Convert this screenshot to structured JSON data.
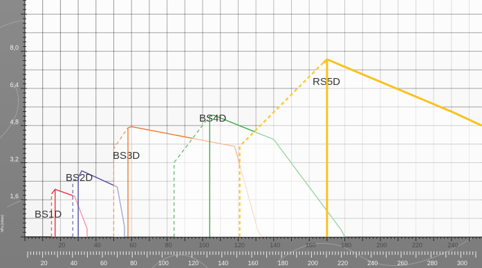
{
  "chart_data": {
    "type": "line",
    "title": "",
    "ylabel": "hPa (mbar)",
    "y_ticks": [
      "1,6",
      "3,2",
      "4,8",
      "6,4",
      "8,0"
    ],
    "x_ticks_upper": [
      "20",
      "40",
      "60",
      "80",
      "100",
      "120",
      "140",
      "160",
      "180",
      "200",
      "220",
      "240",
      "260"
    ],
    "x_ticks_lower": [
      "20",
      "40",
      "60",
      "80",
      "100",
      "120",
      "140",
      "160",
      "180",
      "200",
      "220",
      "240",
      "260",
      "280",
      "300"
    ],
    "series": [
      {
        "name": "BS1D",
        "color": "#e8303c",
        "dashed_x": [
          15,
          15
        ],
        "dashed_y": [
          0,
          1.85
        ],
        "solid_x": [
          15,
          17,
          28,
          35,
          35
        ],
        "solid_y": [
          1.85,
          2.05,
          1.75,
          0.35,
          0
        ]
      },
      {
        "name": "BS2D",
        "color": "#4a4aa6",
        "dashed_x": [
          27,
          27,
          30
        ],
        "dashed_y": [
          0,
          2.4,
          2.55
        ],
        "solid_x": [
          30,
          32,
          52,
          56,
          56
        ],
        "solid_y": [
          2.55,
          2.85,
          2.15,
          0.45,
          0
        ]
      },
      {
        "name": "BS3D",
        "color": "#f07a30",
        "dashed_x": [
          50,
          50,
          58
        ],
        "dashed_y": [
          0,
          3.8,
          4.7
        ],
        "solid_x": [
          58,
          60,
          118,
          131,
          133
        ],
        "solid_y": [
          4.7,
          4.75,
          3.9,
          0.3,
          0
        ]
      },
      {
        "name": "BS4D",
        "color": "#3aaa46",
        "dashed_x": [
          84,
          84,
          104
        ],
        "dashed_y": [
          0,
          3.2,
          5.2
        ],
        "solid_x": [
          104,
          106,
          140,
          178,
          180
        ],
        "solid_y": [
          5.2,
          5.25,
          4.2,
          0.3,
          0
        ]
      },
      {
        "name": "RS5D",
        "color": "#f9c21f",
        "dashed_x": [
          121,
          121,
          168
        ],
        "dashed_y": [
          0,
          3.9,
          7.5
        ],
        "solid_x": [
          168,
          170,
          240,
          257
        ],
        "solid_y": [
          7.5,
          7.65,
          5.4,
          4.8
        ]
      },
      {
        "name": "RS5D-axis",
        "color": "#f9c21f",
        "dashed_x": [],
        "dashed_y": [],
        "solid_x": [
          170,
          170
        ],
        "solid_y": [
          7.65,
          0
        ]
      }
    ]
  }
}
